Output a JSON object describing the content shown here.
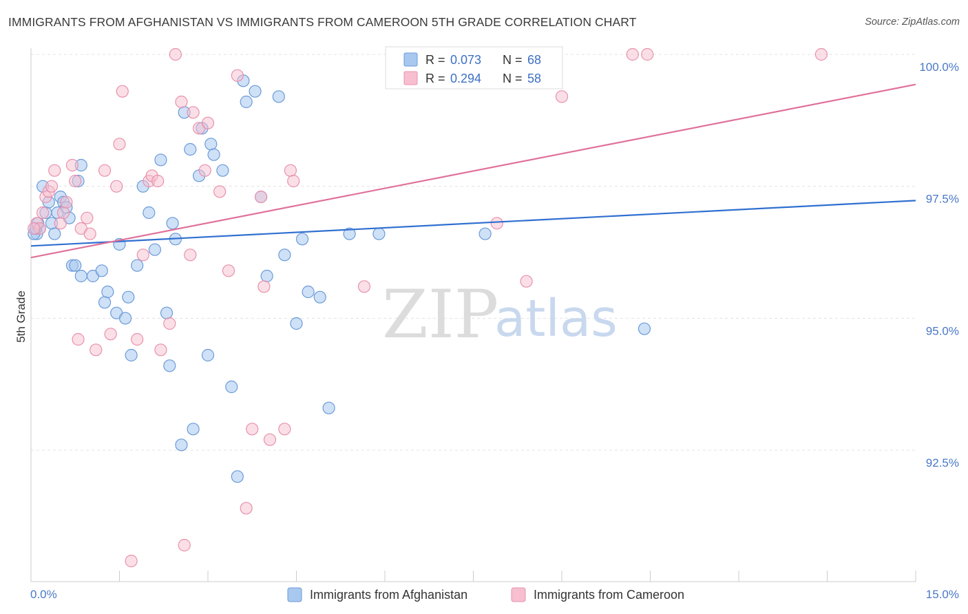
{
  "title": "IMMIGRANTS FROM AFGHANISTAN VS IMMIGRANTS FROM CAMEROON 5TH GRADE CORRELATION CHART",
  "source": "Source: ZipAtlas.com",
  "watermark": {
    "zip": "ZIP",
    "atlas": "atlas"
  },
  "legend_top": [
    {
      "r_label": "R = ",
      "r_value": "0.073",
      "n_label": "N = ",
      "n_value": "68"
    },
    {
      "r_label": "R = ",
      "r_value": "0.294",
      "n_label": "N = ",
      "n_value": "58"
    }
  ],
  "colors": {
    "afghanistan_fill": "#a8c8f0",
    "afghanistan_stroke": "#6a9ad8",
    "afghanistan_line": "#2f6fd0",
    "cameroon_fill": "#f7bfd0",
    "cameroon_stroke": "#e890ac",
    "cameroon_line": "#e0709a",
    "tick_label": "#4a78c8"
  },
  "chart_data": {
    "type": "scatter",
    "title": "IMMIGRANTS FROM AFGHANISTAN VS IMMIGRANTS FROM CAMEROON 5TH GRADE CORRELATION CHART",
    "xlabel": "",
    "ylabel": "5th Grade",
    "xlim": [
      0,
      15
    ],
    "ylim": [
      90.2,
      100.3
    ],
    "x_tick_labels": [
      "0.0%",
      "15.0%"
    ],
    "y_ticks": [
      92.5,
      95.0,
      97.5,
      100.0
    ],
    "y_tick_labels": [
      "92.5%",
      "95.0%",
      "97.5%",
      "100.0%"
    ],
    "grid": true,
    "legend_position": "bottom",
    "series": [
      {
        "name": "Immigrants from Afghanistan",
        "trend": {
          "x": [
            0,
            15
          ],
          "y": [
            96.37,
            97.23
          ]
        },
        "points": [
          [
            0.1,
            96.6
          ],
          [
            0.15,
            96.7
          ],
          [
            0.2,
            97.5
          ],
          [
            0.25,
            97.0
          ],
          [
            0.3,
            97.2
          ],
          [
            0.35,
            96.8
          ],
          [
            0.4,
            96.6
          ],
          [
            0.45,
            97.0
          ],
          [
            0.5,
            97.3
          ],
          [
            0.55,
            97.2
          ],
          [
            0.6,
            97.1
          ],
          [
            0.65,
            96.9
          ],
          [
            0.7,
            96.0
          ],
          [
            0.75,
            96.0
          ],
          [
            0.8,
            97.6
          ],
          [
            0.85,
            97.9
          ],
          [
            0.85,
            95.8
          ],
          [
            1.05,
            95.8
          ],
          [
            1.2,
            95.9
          ],
          [
            1.25,
            95.3
          ],
          [
            1.3,
            95.5
          ],
          [
            1.45,
            95.1
          ],
          [
            1.5,
            96.4
          ],
          [
            1.6,
            95.0
          ],
          [
            1.65,
            95.4
          ],
          [
            1.7,
            94.3
          ],
          [
            1.8,
            96.0
          ],
          [
            1.9,
            97.5
          ],
          [
            2.0,
            97.0
          ],
          [
            2.1,
            96.3
          ],
          [
            2.2,
            98.0
          ],
          [
            2.3,
            95.1
          ],
          [
            2.35,
            94.1
          ],
          [
            2.4,
            96.8
          ],
          [
            2.45,
            96.5
          ],
          [
            2.6,
            98.9
          ],
          [
            2.7,
            98.2
          ],
          [
            2.75,
            92.9
          ],
          [
            2.85,
            97.7
          ],
          [
            2.9,
            98.6
          ],
          [
            3.0,
            94.3
          ],
          [
            3.05,
            98.3
          ],
          [
            3.1,
            98.1
          ],
          [
            3.25,
            97.8
          ],
          [
            3.4,
            93.7
          ],
          [
            3.5,
            92.0
          ],
          [
            3.6,
            99.5
          ],
          [
            3.65,
            99.1
          ],
          [
            3.8,
            99.3
          ],
          [
            3.9,
            97.3
          ],
          [
            4.0,
            95.8
          ],
          [
            4.2,
            99.2
          ],
          [
            4.3,
            96.2
          ],
          [
            4.5,
            94.9
          ],
          [
            4.6,
            96.5
          ],
          [
            4.7,
            95.5
          ],
          [
            4.9,
            95.4
          ],
          [
            5.05,
            93.3
          ],
          [
            5.4,
            96.6
          ],
          [
            5.9,
            96.6
          ],
          [
            6.7,
            100.0
          ],
          [
            7.7,
            96.6
          ],
          [
            8.8,
            100.0
          ],
          [
            10.4,
            94.8
          ],
          [
            2.55,
            92.6
          ],
          [
            0.05,
            96.6
          ],
          [
            0.08,
            96.7
          ],
          [
            0.12,
            96.8
          ]
        ]
      },
      {
        "name": "Immigrants from Cameroon",
        "trend": {
          "x": [
            0,
            15
          ],
          "y": [
            96.15,
            99.43
          ]
        },
        "points": [
          [
            0.1,
            96.8
          ],
          [
            0.15,
            96.7
          ],
          [
            0.2,
            97.0
          ],
          [
            0.25,
            97.3
          ],
          [
            0.3,
            97.4
          ],
          [
            0.35,
            97.5
          ],
          [
            0.4,
            97.8
          ],
          [
            0.5,
            96.8
          ],
          [
            0.55,
            97.0
          ],
          [
            0.6,
            97.2
          ],
          [
            0.7,
            97.9
          ],
          [
            0.75,
            97.6
          ],
          [
            0.8,
            94.6
          ],
          [
            0.85,
            96.7
          ],
          [
            0.95,
            96.9
          ],
          [
            1.0,
            96.6
          ],
          [
            1.1,
            94.4
          ],
          [
            1.25,
            97.8
          ],
          [
            1.35,
            94.7
          ],
          [
            1.45,
            97.5
          ],
          [
            1.5,
            98.3
          ],
          [
            1.55,
            99.3
          ],
          [
            1.7,
            90.4
          ],
          [
            1.8,
            94.6
          ],
          [
            1.9,
            96.2
          ],
          [
            2.0,
            97.6
          ],
          [
            2.05,
            97.7
          ],
          [
            2.15,
            97.6
          ],
          [
            2.2,
            94.4
          ],
          [
            2.35,
            94.9
          ],
          [
            2.45,
            100.0
          ],
          [
            2.55,
            99.1
          ],
          [
            2.6,
            90.7
          ],
          [
            2.7,
            96.2
          ],
          [
            2.75,
            98.9
          ],
          [
            2.85,
            98.6
          ],
          [
            2.95,
            97.8
          ],
          [
            3.0,
            98.7
          ],
          [
            3.2,
            97.4
          ],
          [
            3.35,
            95.9
          ],
          [
            3.5,
            99.6
          ],
          [
            3.65,
            91.4
          ],
          [
            3.75,
            92.9
          ],
          [
            3.9,
            97.3
          ],
          [
            3.95,
            95.6
          ],
          [
            4.05,
            92.7
          ],
          [
            4.3,
            92.9
          ],
          [
            4.4,
            97.8
          ],
          [
            4.45,
            97.6
          ],
          [
            5.65,
            95.6
          ],
          [
            7.9,
            96.8
          ],
          [
            8.4,
            95.7
          ],
          [
            8.7,
            100.0
          ],
          [
            9.0,
            99.2
          ],
          [
            10.2,
            100.0
          ],
          [
            10.45,
            100.0
          ],
          [
            13.4,
            100.0
          ],
          [
            0.05,
            96.7
          ]
        ]
      }
    ]
  },
  "legend_bottom": [
    {
      "label": "Immigrants from Afghanistan"
    },
    {
      "label": "Immigrants from Cameroon"
    }
  ]
}
